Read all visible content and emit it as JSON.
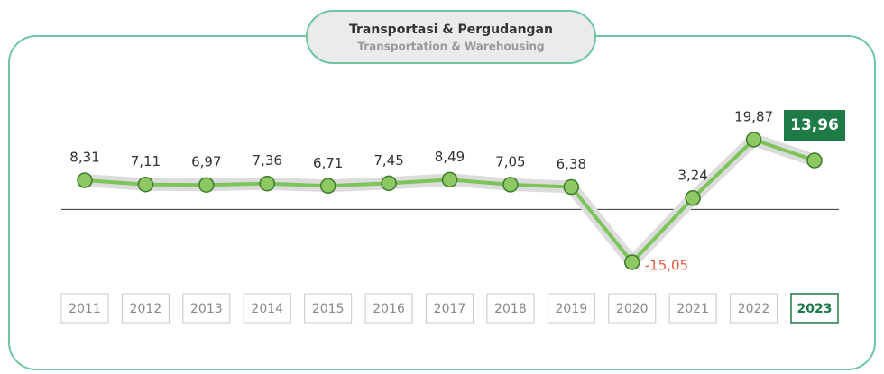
{
  "chart_data": {
    "type": "line",
    "title": "Transportasi & Pergudangan",
    "subtitle": "Transportation & Warehousing",
    "categories": [
      "2011",
      "2012",
      "2013",
      "2014",
      "2015",
      "2016",
      "2017",
      "2018",
      "2019",
      "2020",
      "2021",
      "2022",
      "2023"
    ],
    "values": [
      8.31,
      7.11,
      6.97,
      7.36,
      6.71,
      7.45,
      8.49,
      7.05,
      6.38,
      -15.05,
      3.24,
      19.87,
      13.96
    ],
    "value_labels": [
      "8,31",
      "7,11",
      "6,97",
      "7,36",
      "6,71",
      "7,45",
      "8,49",
      "7,05",
      "6,38",
      "-15,05",
      "3,24",
      "19,87",
      "13,96"
    ],
    "color": "#7dc45a"
  }
}
